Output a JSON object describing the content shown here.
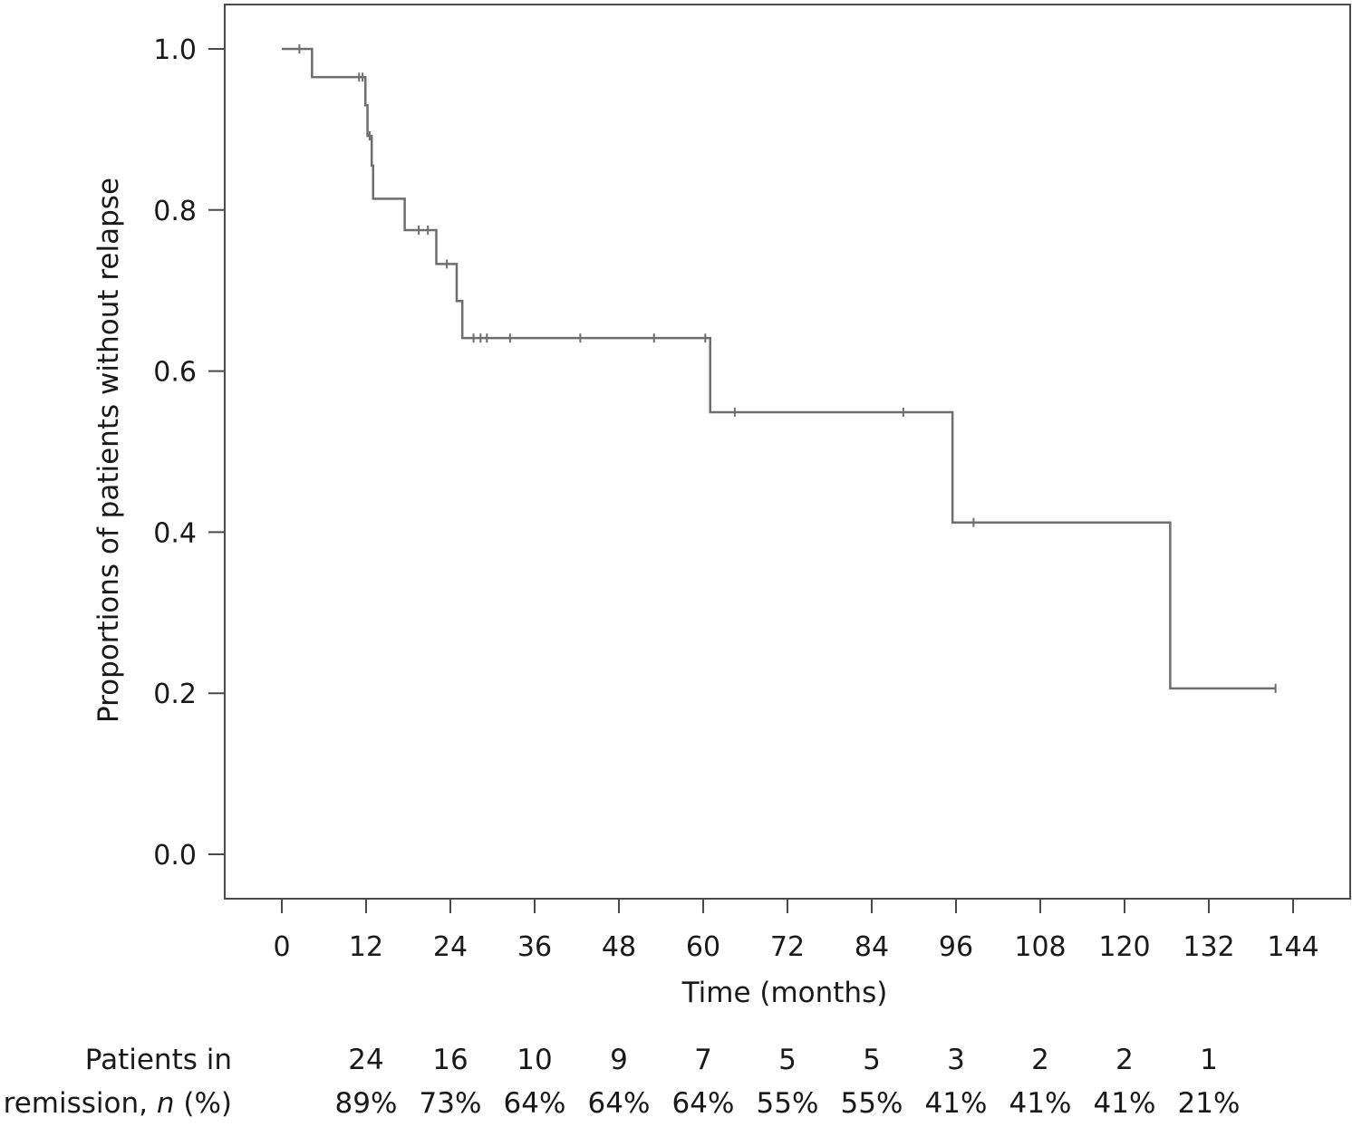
{
  "chart_data": {
    "type": "line",
    "xlabel": "Time (months)",
    "ylabel": "Proportions of patients without relapse",
    "xlim": [
      0,
      144
    ],
    "ylim": [
      0,
      1.0
    ],
    "x_ticks": [
      0,
      12,
      24,
      36,
      48,
      60,
      72,
      84,
      96,
      108,
      120,
      132,
      144
    ],
    "y_ticks": [
      0.0,
      0.2,
      0.4,
      0.6,
      0.8,
      1.0
    ],
    "y_tick_labels": [
      "0.0",
      "0.2",
      "0.4",
      "0.6",
      "0.8",
      "1.0"
    ],
    "grid": false,
    "legend": "none",
    "series": [
      {
        "line_color": "#6e6e6e",
        "steps": [
          {
            "x": 0,
            "y": 1.0
          },
          {
            "x": 4.3,
            "y": 0.965
          },
          {
            "x": 11.9,
            "y": 0.93
          },
          {
            "x": 12.2,
            "y": 0.892
          },
          {
            "x": 12.8,
            "y": 0.855
          },
          {
            "x": 13.0,
            "y": 0.814
          },
          {
            "x": 17.5,
            "y": 0.775
          },
          {
            "x": 22.0,
            "y": 0.733
          },
          {
            "x": 24.9,
            "y": 0.687
          },
          {
            "x": 25.7,
            "y": 0.641
          },
          {
            "x": 61.0,
            "y": 0.549
          },
          {
            "x": 95.5,
            "y": 0.412
          },
          {
            "x": 126.5,
            "y": 0.206
          }
        ],
        "x_end": 141.5,
        "censored": [
          {
            "x": 2.5,
            "y": 1.0
          },
          {
            "x": 11.0,
            "y": 0.965
          },
          {
            "x": 11.5,
            "y": 0.965
          },
          {
            "x": 12.5,
            "y": 0.892
          },
          {
            "x": 19.5,
            "y": 0.775
          },
          {
            "x": 20.8,
            "y": 0.775
          },
          {
            "x": 23.5,
            "y": 0.733
          },
          {
            "x": 27.3,
            "y": 0.641
          },
          {
            "x": 28.3,
            "y": 0.641
          },
          {
            "x": 29.2,
            "y": 0.641
          },
          {
            "x": 32.5,
            "y": 0.641
          },
          {
            "x": 42.5,
            "y": 0.641
          },
          {
            "x": 53.0,
            "y": 0.641
          },
          {
            "x": 60.3,
            "y": 0.641
          },
          {
            "x": 64.5,
            "y": 0.549
          },
          {
            "x": 88.5,
            "y": 0.549
          },
          {
            "x": 98.5,
            "y": 0.412
          },
          {
            "x": 141.5,
            "y": 0.206
          }
        ]
      }
    ],
    "risk_table": {
      "label_line1": "Patients in",
      "label_line2_prefix": "remission, ",
      "label_line2_italic": "n",
      "label_line2_suffix": " (%)",
      "times": [
        12,
        24,
        36,
        48,
        60,
        72,
        84,
        96,
        108,
        120,
        132
      ],
      "counts": [
        "24",
        "16",
        "10",
        "9",
        "7",
        "5",
        "5",
        "3",
        "2",
        "2",
        "1"
      ],
      "percents": [
        "89%",
        "73%",
        "64%",
        "64%",
        "64%",
        "55%",
        "55%",
        "41%",
        "41%",
        "41%",
        "21%"
      ]
    }
  }
}
